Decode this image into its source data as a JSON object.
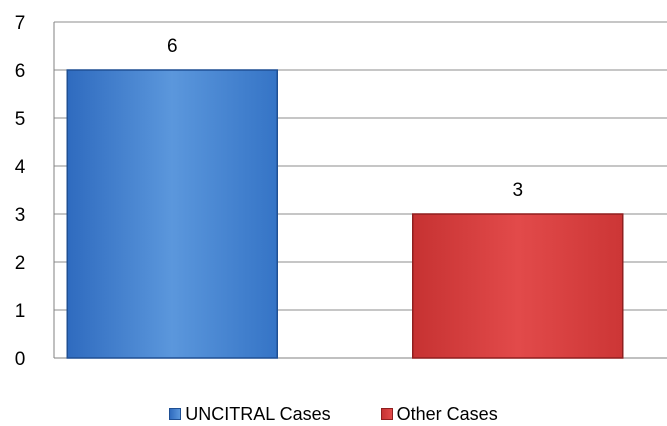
{
  "chart_data": {
    "type": "bar",
    "categories": [
      "UNCITRAL Cases",
      "Other Cases"
    ],
    "values": [
      6,
      3
    ],
    "data_labels": [
      "6",
      "3"
    ],
    "ylim": [
      0,
      7
    ],
    "yticks": [
      "0",
      "1",
      "2",
      "3",
      "4",
      "5",
      "6",
      "7"
    ],
    "grid": true,
    "legend_position": "bottom",
    "colors": [
      "#4a86d0",
      "#d94040"
    ],
    "legend": [
      "UNCITRAL Cases",
      "Other Cases"
    ]
  }
}
